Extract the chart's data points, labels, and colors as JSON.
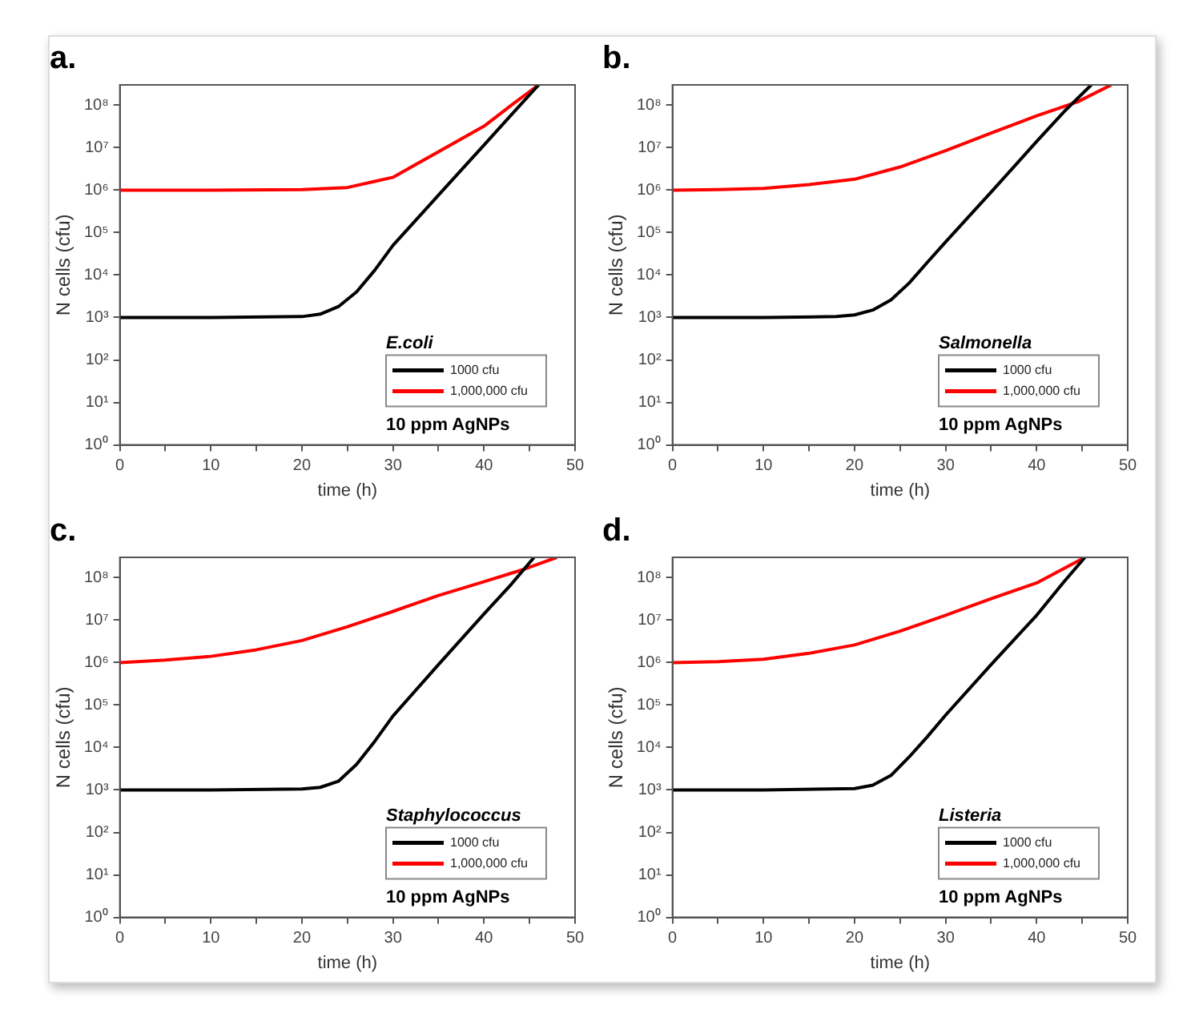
{
  "chart_data": [
    {
      "type": "line",
      "title": "a.",
      "xlabel": "time (h)",
      "ylabel": "N cells (cfu)",
      "legend_title": "E.coli",
      "annotations": [
        "10 ppm AgNPs"
      ],
      "legend": "bottom right",
      "log": "y",
      "grid": false,
      "xlim": [
        0,
        50
      ],
      "xticks": [
        0,
        {
          "value": 5,
          "label": null
        },
        10,
        {
          "value": 15,
          "label": null
        },
        20,
        {
          "value": 25,
          "label": null
        },
        30,
        {
          "value": 35,
          "label": null
        },
        40,
        {
          "value": 45,
          "label": null
        },
        50
      ],
      "ylim": [
        1,
        300000000
      ],
      "yticks": [
        {
          "value": 1,
          "label": "10⁰"
        },
        {
          "value": 10,
          "label": "10¹"
        },
        {
          "value": 100,
          "label": "10²"
        },
        {
          "value": 1000,
          "label": "10³"
        },
        {
          "value": 10000,
          "label": "10⁴"
        },
        {
          "value": 100000,
          "label": "10⁵"
        },
        {
          "value": 1000000,
          "label": "10⁶"
        },
        {
          "value": 10000000,
          "label": "10⁷"
        },
        {
          "value": 100000000,
          "label": "10⁸"
        }
      ],
      "series": [
        {
          "name": "1000 cfu",
          "color": "#000000",
          "x": [
            0,
            10,
            20,
            22,
            24,
            26,
            28,
            30,
            35,
            40,
            43,
            46
          ],
          "values": [
            1000,
            1000,
            1050,
            1200,
            1800,
            4000,
            13000,
            50000,
            760000,
            11500000,
            59000000,
            300000000
          ]
        },
        {
          "name": "1,000,000 cfu",
          "color": "#ff0000",
          "x": [
            0,
            10,
            20,
            25,
            28,
            30,
            35,
            40,
            43,
            46
          ],
          "values": [
            1000000,
            1000000,
            1030000,
            1150000,
            1600000,
            2000000,
            8000000,
            32000000,
            100000000,
            300000000
          ]
        }
      ]
    },
    {
      "type": "line",
      "title": "b.",
      "xlabel": "time (h)",
      "ylabel": "N cells (cfu)",
      "legend_title": "Salmonella",
      "annotations": [
        "10 ppm AgNPs"
      ],
      "legend": "bottom right",
      "log": "y",
      "grid": false,
      "xlim": [
        0,
        50
      ],
      "xticks": [
        0,
        {
          "value": 5,
          "label": null
        },
        10,
        {
          "value": 15,
          "label": null
        },
        20,
        {
          "value": 25,
          "label": null
        },
        30,
        {
          "value": 35,
          "label": null
        },
        40,
        {
          "value": 45,
          "label": null
        },
        50
      ],
      "ylim": [
        1,
        300000000
      ],
      "yticks": [
        {
          "value": 1,
          "label": "10⁰"
        },
        {
          "value": 10,
          "label": "10¹"
        },
        {
          "value": 100,
          "label": "10²"
        },
        {
          "value": 1000,
          "label": "10³"
        },
        {
          "value": 10000,
          "label": "10⁴"
        },
        {
          "value": 100000,
          "label": "10⁵"
        },
        {
          "value": 1000000,
          "label": "10⁶"
        },
        {
          "value": 10000000,
          "label": "10⁷"
        },
        {
          "value": 100000000,
          "label": "10⁸"
        }
      ],
      "series": [
        {
          "name": "1000 cfu",
          "color": "#000000",
          "x": [
            0,
            10,
            18,
            20,
            22,
            24,
            26,
            28,
            30,
            35,
            40,
            43,
            46
          ],
          "values": [
            1000,
            1000,
            1050,
            1150,
            1500,
            2600,
            6500,
            20000,
            60000,
            900000,
            14000000,
            70000000,
            300000000
          ]
        },
        {
          "name": "1,000,000 cfu",
          "color": "#ff0000",
          "x": [
            0,
            5,
            10,
            15,
            20,
            25,
            30,
            35,
            40,
            44.5,
            48.2
          ],
          "values": [
            1000000,
            1030000,
            1100000,
            1350000,
            1800000,
            3500000,
            8500000,
            22000000,
            56000000,
            120000000,
            300000000
          ]
        }
      ]
    },
    {
      "type": "line",
      "title": "c.",
      "xlabel": "time (h)",
      "ylabel": "N cells (cfu)",
      "legend_title": "Staphylococcus",
      "annotations": [
        "10 ppm AgNPs"
      ],
      "legend": "bottom right",
      "log": "y",
      "grid": false,
      "xlim": [
        0,
        50
      ],
      "xticks": [
        0,
        {
          "value": 5,
          "label": null
        },
        10,
        {
          "value": 15,
          "label": null
        },
        20,
        {
          "value": 25,
          "label": null
        },
        30,
        {
          "value": 35,
          "label": null
        },
        40,
        {
          "value": 45,
          "label": null
        },
        50
      ],
      "ylim": [
        1,
        300000000
      ],
      "yticks": [
        {
          "value": 1,
          "label": "10⁰"
        },
        {
          "value": 10,
          "label": "10¹"
        },
        {
          "value": 100,
          "label": "10²"
        },
        {
          "value": 1000,
          "label": "10³"
        },
        {
          "value": 10000,
          "label": "10⁴"
        },
        {
          "value": 100000,
          "label": "10⁵"
        },
        {
          "value": 1000000,
          "label": "10⁶"
        },
        {
          "value": 10000000,
          "label": "10⁷"
        },
        {
          "value": 100000000,
          "label": "10⁸"
        }
      ],
      "series": [
        {
          "name": "1000 cfu",
          "color": "#000000",
          "x": [
            0,
            10,
            20,
            22,
            24,
            26,
            28,
            30,
            35,
            40,
            43,
            45.5
          ],
          "values": [
            1000,
            1000,
            1050,
            1150,
            1600,
            4000,
            14000,
            55000,
            900000,
            14000000,
            70000000,
            300000000
          ]
        },
        {
          "name": "1,000,000 cfu",
          "color": "#ff0000",
          "x": [
            0,
            5,
            10,
            15,
            20,
            25,
            30,
            35,
            40,
            44.5,
            48
          ],
          "values": [
            1000000,
            1150000,
            1400000,
            2000000,
            3300000,
            7000000,
            16000000,
            38000000,
            80000000,
            160000000,
            300000000
          ]
        }
      ]
    },
    {
      "type": "line",
      "title": "d.",
      "xlabel": "time (h)",
      "ylabel": "N cells (cfu)",
      "legend_title": "Listeria",
      "annotations": [
        "10 ppm AgNPs"
      ],
      "legend": "bottom right",
      "log": "y",
      "grid": false,
      "xlim": [
        0,
        50
      ],
      "xticks": [
        0,
        {
          "value": 5,
          "label": null
        },
        10,
        {
          "value": 15,
          "label": null
        },
        20,
        {
          "value": 25,
          "label": null
        },
        30,
        {
          "value": 35,
          "label": null
        },
        40,
        {
          "value": 45,
          "label": null
        },
        50
      ],
      "ylim": [
        1,
        300000000
      ],
      "yticks": [
        {
          "value": 1,
          "label": "10⁰"
        },
        {
          "value": 10,
          "label": "10¹"
        },
        {
          "value": 100,
          "label": "10²"
        },
        {
          "value": 1000,
          "label": "10³"
        },
        {
          "value": 10000,
          "label": "10⁴"
        },
        {
          "value": 100000,
          "label": "10⁵"
        },
        {
          "value": 1000000,
          "label": "10⁶"
        },
        {
          "value": 10000000,
          "label": "10⁷"
        },
        {
          "value": 100000000,
          "label": "10⁸"
        }
      ],
      "series": [
        {
          "name": "1000 cfu",
          "color": "#000000",
          "x": [
            0,
            10,
            20,
            22,
            24,
            26,
            28,
            30,
            35,
            40,
            43,
            45.3
          ],
          "values": [
            1000,
            1000,
            1080,
            1300,
            2200,
            6000,
            18000,
            58000,
            900000,
            13000000,
            80000000,
            300000000
          ]
        },
        {
          "name": "1,000,000 cfu",
          "color": "#ff0000",
          "x": [
            0,
            5,
            10,
            15,
            20,
            25,
            30,
            35,
            40,
            45.3
          ],
          "values": [
            1000000,
            1050000,
            1200000,
            1650000,
            2600000,
            5500000,
            13000000,
            32000000,
            75000000,
            300000000
          ]
        }
      ]
    }
  ]
}
